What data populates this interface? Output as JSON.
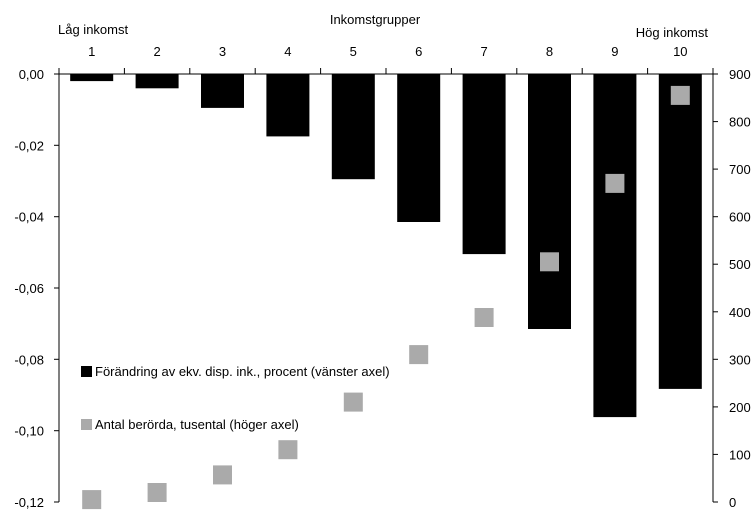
{
  "chart_data": {
    "type": "bar",
    "title": "Inkomstgrupper",
    "low_label": "Låg inkomst",
    "high_label": "Hög inkomst",
    "categories": [
      "1",
      "2",
      "3",
      "4",
      "5",
      "6",
      "7",
      "8",
      "9",
      "10"
    ],
    "series": [
      {
        "name": "Förändring av ekv. disp. ink., procent (vänster axel)",
        "type": "bar",
        "axis": "left",
        "color": "#000000",
        "values": [
          -0.002,
          -0.004,
          -0.0095,
          -0.0175,
          -0.0295,
          -0.0415,
          -0.0505,
          -0.0715,
          -0.0962,
          -0.0883
        ]
      },
      {
        "name": "Antal berörda, tusental (höger axel)",
        "type": "scatter",
        "axis": "right",
        "color": "#aaaaaa",
        "values": [
          5,
          20,
          57,
          110,
          210,
          310,
          388,
          505,
          670,
          855
        ]
      }
    ],
    "left_axis": {
      "ylim": [
        -0.12,
        0.0
      ],
      "ticks": [
        0.0,
        -0.02,
        -0.04,
        -0.06,
        -0.08,
        -0.1,
        -0.12
      ],
      "tick_labels": [
        "0,00",
        "-0,02",
        "-0,04",
        "-0,06",
        "-0,08",
        "-0,10",
        "-0,12"
      ]
    },
    "right_axis": {
      "ylim": [
        0,
        900
      ],
      "ticks": [
        900,
        800,
        700,
        600,
        500,
        400,
        300,
        200,
        100,
        0
      ],
      "tick_labels": [
        "900",
        "800",
        "700",
        "600",
        "500",
        "400",
        "300",
        "200",
        "100",
        "0"
      ]
    },
    "grid": false,
    "legend_position": "middle-left"
  }
}
